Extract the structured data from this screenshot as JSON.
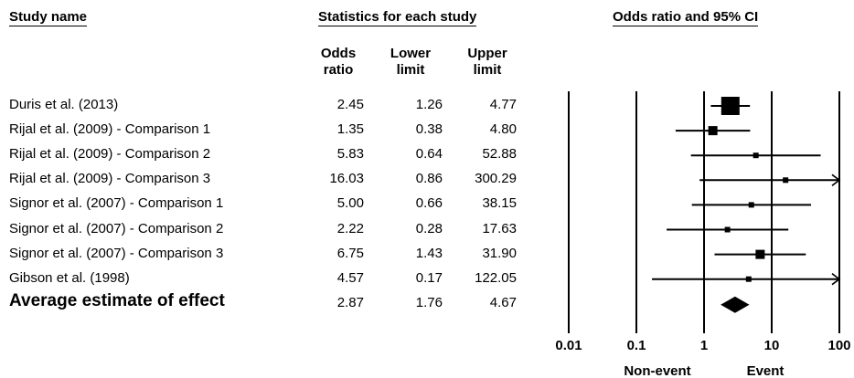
{
  "headers": {
    "study_name": "Study name",
    "statistics": "Statistics for each study",
    "odds_ratio_ci": "Odds ratio and 95% CI",
    "col_or": "Odds ratio",
    "col_or_l1": "Odds",
    "col_or_l2": "ratio",
    "col_lower_l1": "Lower",
    "col_lower_l2": "limit",
    "col_upper_l1": "Upper",
    "col_upper_l2": "limit"
  },
  "chart_data": {
    "type": "forest",
    "x_scale": "log",
    "xlim": [
      0.01,
      100
    ],
    "x_ticks": [
      "0.01",
      "0.1",
      "1",
      "10",
      "100"
    ],
    "x_tick_values": [
      0.01,
      0.1,
      1,
      10,
      100
    ],
    "xlabel_left": "Non-event",
    "xlabel_right": "Event",
    "studies": [
      {
        "name": "Duris et al. (2013)",
        "or": "2.45",
        "lower": "1.26",
        "upper": "4.77",
        "weight": "large"
      },
      {
        "name": "Rijal et al. (2009) - Comparison 1",
        "or": "1.35",
        "lower": "0.38",
        "upper": "4.80",
        "weight": "medium"
      },
      {
        "name": "Rijal et al. (2009) - Comparison 2",
        "or": "5.83",
        "lower": "0.64",
        "upper": "52.88",
        "weight": "small"
      },
      {
        "name": "Rijal et al. (2009) - Comparison 3",
        "or": "16.03",
        "lower": "0.86",
        "upper": "300.29",
        "weight": "small"
      },
      {
        "name": "Signor et al. (2007) - Comparison 1",
        "or": "5.00",
        "lower": "0.66",
        "upper": "38.15",
        "weight": "small"
      },
      {
        "name": "Signor et al. (2007) - Comparison 2",
        "or": "2.22",
        "lower": "0.28",
        "upper": "17.63",
        "weight": "small"
      },
      {
        "name": "Signor et al. (2007) - Comparison 3",
        "or": "6.75",
        "lower": "1.43",
        "upper": "31.90",
        "weight": "medium"
      },
      {
        "name": "Gibson et al. (1998)",
        "or": "4.57",
        "lower": "0.17",
        "upper": "122.05",
        "weight": "small"
      }
    ],
    "summary": {
      "name": "Average estimate of effect",
      "or": "2.87",
      "lower": "1.76",
      "upper": "4.67"
    }
  }
}
